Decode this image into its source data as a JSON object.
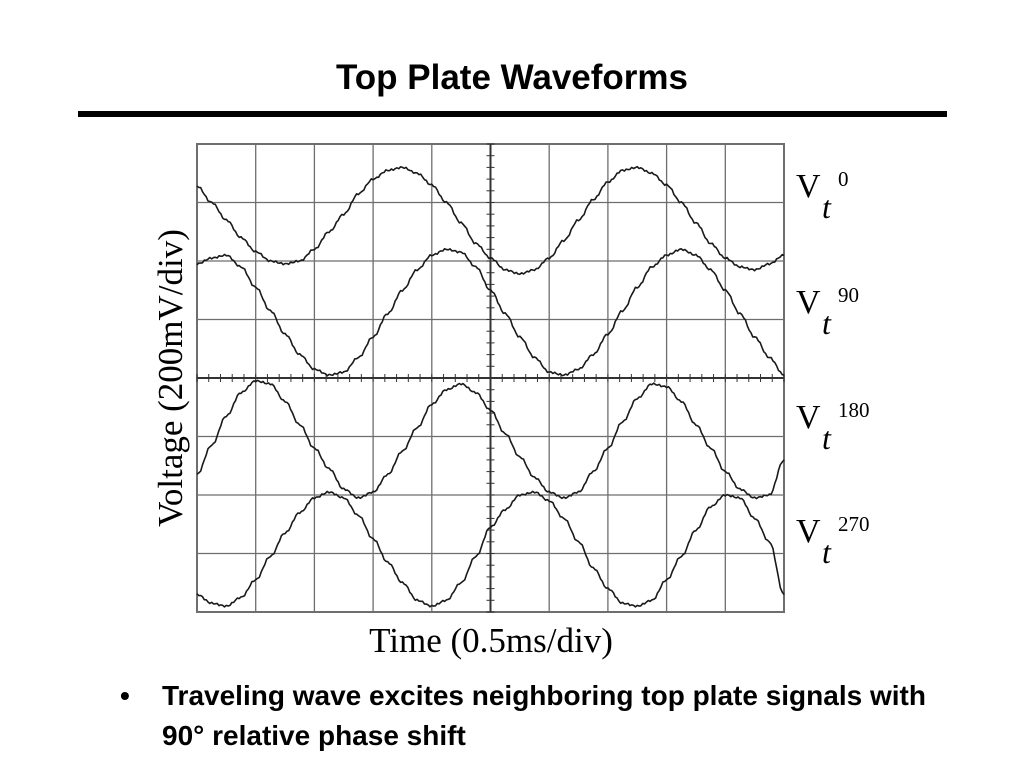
{
  "slide": {
    "title": "Top Plate Waveforms",
    "bullets": [
      "Traveling wave excites neighboring top plate signals with 90° relative phase shift"
    ],
    "bullet_glyph": "•"
  },
  "chart_data": {
    "type": "line",
    "xlabel": "Time (0.5ms/div)",
    "ylabel": "Voltage (200mV/div)",
    "x_divisions": 10,
    "y_divisions": 8,
    "x_unit": "div",
    "y_unit": "div",
    "xlim": [
      0,
      10
    ],
    "ylim": [
      0,
      8
    ],
    "grid": true,
    "series": [
      {
        "name": "Vt 0",
        "label_main": "V",
        "label_sub": "t",
        "label_sup": "0",
        "x": [
          0.0,
          0.25,
          0.5,
          0.75,
          1.0,
          1.25,
          1.5,
          1.75,
          2.0,
          2.25,
          2.5,
          2.75,
          3.0,
          3.25,
          3.5,
          3.75,
          4.0,
          4.25,
          4.5,
          4.75,
          5.0,
          5.25,
          5.5,
          5.75,
          6.0,
          6.25,
          6.5,
          6.75,
          7.0,
          7.25,
          7.5,
          7.75,
          8.0,
          8.25,
          8.5,
          8.75,
          9.0,
          9.25,
          9.5,
          9.75,
          10.0
        ],
        "y": [
          7.28,
          7.0,
          6.7,
          6.4,
          6.16,
          6.0,
          5.95,
          6.0,
          6.2,
          6.5,
          6.8,
          7.15,
          7.4,
          7.55,
          7.6,
          7.5,
          7.3,
          7.0,
          6.65,
          6.3,
          6.05,
          5.85,
          5.78,
          5.85,
          6.05,
          6.35,
          6.7,
          7.05,
          7.35,
          7.55,
          7.6,
          7.5,
          7.3,
          7.0,
          6.65,
          6.3,
          6.05,
          5.9,
          5.85,
          5.95,
          6.1
        ]
      },
      {
        "name": "Vt 90",
        "label_main": "V",
        "label_sub": "t",
        "label_sup": "90",
        "x": [
          0.0,
          0.25,
          0.5,
          0.75,
          1.0,
          1.25,
          1.5,
          1.75,
          2.0,
          2.25,
          2.5,
          2.75,
          3.0,
          3.25,
          3.5,
          3.75,
          4.0,
          4.25,
          4.5,
          4.75,
          5.0,
          5.25,
          5.5,
          5.75,
          6.0,
          6.25,
          6.5,
          6.75,
          7.0,
          7.25,
          7.5,
          7.75,
          8.0,
          8.25,
          8.5,
          8.75,
          9.0,
          9.25,
          9.5,
          9.75,
          10.0
        ],
        "y": [
          5.95,
          6.05,
          6.1,
          5.9,
          5.55,
          5.15,
          4.75,
          4.4,
          4.15,
          4.05,
          4.1,
          4.35,
          4.7,
          5.1,
          5.5,
          5.85,
          6.1,
          6.2,
          6.15,
          5.9,
          5.5,
          5.1,
          4.7,
          4.35,
          4.1,
          4.05,
          4.15,
          4.4,
          4.75,
          5.15,
          5.55,
          5.9,
          6.1,
          6.2,
          6.1,
          5.85,
          5.5,
          5.1,
          4.7,
          4.35,
          4.05
        ]
      },
      {
        "name": "Vt 180",
        "label_main": "V",
        "label_sub": "t",
        "label_sup": "180",
        "x": [
          0.0,
          0.25,
          0.5,
          0.75,
          1.0,
          1.25,
          1.5,
          1.75,
          2.0,
          2.25,
          2.5,
          2.75,
          3.0,
          3.25,
          3.5,
          3.75,
          4.0,
          4.25,
          4.5,
          4.75,
          5.0,
          5.25,
          5.5,
          5.75,
          6.0,
          6.25,
          6.5,
          6.75,
          7.0,
          7.25,
          7.5,
          7.75,
          8.0,
          8.25,
          8.5,
          8.75,
          9.0,
          9.25,
          9.5,
          9.75,
          10.0
        ],
        "y": [
          2.35,
          2.85,
          3.35,
          3.75,
          3.95,
          3.9,
          3.6,
          3.2,
          2.8,
          2.45,
          2.1,
          1.95,
          2.05,
          2.35,
          2.75,
          3.15,
          3.55,
          3.8,
          3.9,
          3.75,
          3.45,
          3.05,
          2.65,
          2.3,
          2.05,
          1.95,
          2.05,
          2.4,
          2.8,
          3.25,
          3.65,
          3.9,
          3.85,
          3.6,
          3.2,
          2.8,
          2.4,
          2.1,
          1.95,
          2.0,
          2.6
        ]
      },
      {
        "name": "Vt 270",
        "label_main": "V",
        "label_sub": "t",
        "label_sup": "270",
        "x": [
          0.0,
          0.25,
          0.5,
          0.75,
          1.0,
          1.25,
          1.5,
          1.75,
          2.0,
          2.25,
          2.5,
          2.75,
          3.0,
          3.25,
          3.5,
          3.75,
          4.0,
          4.25,
          4.5,
          4.75,
          5.0,
          5.25,
          5.5,
          5.75,
          6.0,
          6.25,
          6.5,
          6.75,
          7.0,
          7.25,
          7.5,
          7.75,
          8.0,
          8.25,
          8.5,
          8.75,
          9.0,
          9.25,
          9.5,
          9.75,
          10.0
        ],
        "y": [
          0.3,
          0.15,
          0.1,
          0.25,
          0.55,
          0.95,
          1.35,
          1.7,
          1.95,
          2.05,
          1.95,
          1.65,
          1.25,
          0.85,
          0.5,
          0.2,
          0.1,
          0.2,
          0.5,
          0.95,
          1.45,
          1.75,
          2.0,
          2.05,
          1.9,
          1.6,
          1.2,
          0.75,
          0.4,
          0.15,
          0.1,
          0.2,
          0.55,
          0.95,
          1.4,
          1.8,
          2.0,
          1.95,
          1.6,
          1.2,
          0.3
        ]
      }
    ]
  },
  "colors": {
    "background": "#ffffff",
    "trace": "#1a1a1a",
    "grid": "#6e6e6e",
    "text": "#000000"
  }
}
